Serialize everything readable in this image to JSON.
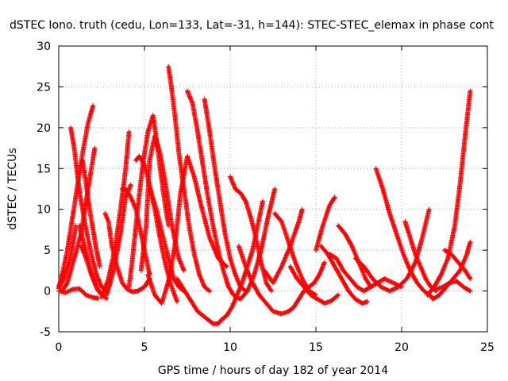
{
  "chart_data": {
    "type": "scatter",
    "title": "dSTEC Iono. truth (cedu, Lon=133, Lat=-31, h=144): STEC-STEC_elemax in phase cont",
    "xlabel": "GPS time / hours of day 182 of year 2014",
    "ylabel": "dSTEC  / TECUs",
    "xlim": [
      0,
      25
    ],
    "ylim": [
      -5,
      30
    ],
    "xticks": [
      "0",
      "5",
      "10",
      "15",
      "20",
      "25"
    ],
    "yticks": [
      "-5",
      "0",
      "5",
      "10",
      "15",
      "20",
      "25",
      "30"
    ],
    "grid": true,
    "legend": false,
    "marker": "+",
    "color": "#ff0000",
    "series": [
      {
        "x": [
          0.0,
          0.2,
          0.5,
          0.8,
          1.1,
          1.4,
          1.7,
          2.0
        ],
        "y": [
          0.5,
          2.0,
          5.0,
          9.0,
          13.0,
          17.0,
          20.5,
          22.7
        ]
      },
      {
        "x": [
          0.0,
          0.3,
          0.6,
          0.8,
          1.0
        ],
        "y": [
          0.3,
          1.5,
          3.5,
          5.5,
          8.0
        ]
      },
      {
        "x": [
          0.0,
          0.4,
          0.8,
          1.2,
          1.6,
          2.0,
          2.3
        ],
        "y": [
          0.0,
          -0.2,
          0.2,
          0.3,
          -0.5,
          -0.8,
          -0.9
        ]
      },
      {
        "x": [
          0.7,
          0.9,
          1.1,
          1.3,
          1.6,
          1.9,
          2.2,
          2.5,
          2.8
        ],
        "y": [
          20.0,
          17.5,
          14.0,
          11.0,
          7.5,
          4.5,
          2.0,
          0.5,
          0.0
        ]
      },
      {
        "x": [
          0.2,
          0.5,
          0.9,
          1.3,
          1.6,
          1.9,
          2.1
        ],
        "y": [
          0.0,
          1.0,
          4.0,
          7.0,
          11.0,
          15.0,
          17.5
        ]
      },
      {
        "x": [
          1.2,
          1.5,
          1.8,
          2.1,
          2.3,
          2.5
        ],
        "y": [
          8.0,
          5.5,
          3.0,
          1.0,
          0.0,
          -0.3
        ]
      },
      {
        "x": [
          1.4,
          1.6,
          1.8,
          2.0,
          2.2,
          2.4
        ],
        "y": [
          16.0,
          13.0,
          10.0,
          7.5,
          5.0,
          3.0
        ]
      },
      {
        "x": [
          1.3,
          1.6,
          1.9,
          2.2,
          2.5,
          2.8
        ],
        "y": [
          5.5,
          4.0,
          2.0,
          0.5,
          -0.5,
          -0.9
        ]
      },
      {
        "x": [
          2.5,
          2.9,
          3.3,
          3.6,
          3.9,
          4.1
        ],
        "y": [
          -0.8,
          1.5,
          5.5,
          10.0,
          15.0,
          19.5
        ]
      },
      {
        "x": [
          2.7,
          2.9,
          3.1,
          3.4,
          3.7,
          4.0,
          4.3,
          4.6,
          5.0,
          5.3
        ],
        "y": [
          9.5,
          8.5,
          5.5,
          3.0,
          1.0,
          0.2,
          -0.1,
          0.0,
          0.5,
          1.5
        ]
      },
      {
        "x": [
          2.8,
          3.2,
          3.6,
          3.9,
          4.2
        ],
        "y": [
          -0.5,
          2.5,
          7.0,
          11.5,
          13.0
        ]
      },
      {
        "x": [
          3.7,
          3.9,
          4.2,
          4.5,
          4.8,
          5.1,
          5.3
        ],
        "y": [
          12.5,
          12.5,
          11.5,
          10.0,
          7.0,
          4.0,
          2.0
        ]
      },
      {
        "x": [
          4.1,
          4.3,
          4.6,
          4.9,
          5.2,
          5.5,
          5.8,
          6.1,
          6.4
        ],
        "y": [
          0.5,
          4.0,
          10.0,
          15.5,
          19.5,
          21.5,
          17.0,
          12.0,
          8.0
        ]
      },
      {
        "x": [
          4.5,
          4.7,
          5.0,
          5.3,
          5.6,
          5.9,
          6.2,
          6.5,
          6.9
        ],
        "y": [
          16.0,
          16.5,
          15.5,
          13.0,
          10.0,
          6.5,
          3.5,
          1.0,
          -1.3
        ]
      },
      {
        "x": [
          4.8,
          5.1,
          5.3,
          5.6,
          5.9,
          6.2,
          6.6,
          7.0,
          7.3
        ],
        "y": [
          2.5,
          8.0,
          16.0,
          19.0,
          17.0,
          13.5,
          8.0,
          4.0,
          2.5
        ]
      },
      {
        "x": [
          5.3,
          5.7,
          6.1,
          6.4,
          6.7,
          7.0,
          7.3
        ],
        "y": [
          12.5,
          10.0,
          6.5,
          4.0,
          1.5,
          0.5,
          0.0
        ]
      },
      {
        "x": [
          5.2,
          5.6,
          6.0,
          6.3,
          6.5,
          6.8,
          7.1,
          7.5,
          7.9,
          8.3,
          8.8,
          9.3,
          9.8
        ],
        "y": [
          2.0,
          -0.5,
          -1.5,
          0.5,
          2.0,
          6.0,
          12.0,
          16.5,
          14.0,
          10.5,
          6.5,
          4.0,
          3.0
        ]
      },
      {
        "x": [
          6.4,
          6.6,
          6.8,
          7.0,
          7.3,
          7.6,
          7.9,
          8.2,
          8.5,
          8.8
        ],
        "y": [
          27.5,
          24.5,
          21.0,
          17.0,
          12.5,
          8.0,
          4.5,
          2.0,
          0.5,
          0.0
        ]
      },
      {
        "x": [
          6.9,
          7.2,
          7.5,
          7.8,
          8.1,
          8.4,
          8.7,
          9.0,
          9.3,
          9.5
        ],
        "y": [
          1.5,
          0.5,
          -0.5,
          -1.5,
          -2.5,
          -3.0,
          -3.5,
          -4.0,
          -4.0,
          -3.5
        ]
      },
      {
        "x": [
          7.5,
          7.8,
          8.1,
          8.4,
          8.7,
          9.0,
          9.3,
          9.6,
          9.9,
          10.2
        ],
        "y": [
          24.5,
          23.0,
          19.5,
          15.5,
          11.5,
          8.0,
          5.0,
          2.5,
          0.5,
          -0.5
        ]
      },
      {
        "x": [
          8.5,
          8.8,
          9.1,
          9.4,
          9.7,
          10.0,
          10.3,
          10.6,
          10.9
        ],
        "y": [
          23.5,
          19.5,
          15.0,
          11.0,
          7.0,
          4.0,
          2.0,
          0.5,
          0.0
        ]
      },
      {
        "x": [
          9.5,
          9.8,
          10.1,
          10.4,
          10.7,
          11.0,
          11.3,
          11.6,
          11.9
        ],
        "y": [
          -3.5,
          -3.0,
          -2.0,
          -0.5,
          1.0,
          3.0,
          5.0,
          8.0,
          11.0
        ]
      },
      {
        "x": [
          10.0,
          10.3,
          10.6,
          10.9,
          11.2,
          11.5,
          11.8,
          12.1,
          12.4
        ],
        "y": [
          14.0,
          12.5,
          12.0,
          11.0,
          9.0,
          6.5,
          3.5,
          1.0,
          0.0
        ]
      },
      {
        "x": [
          10.2,
          10.6,
          11.0,
          11.4,
          11.8,
          12.2,
          12.6
        ],
        "y": [
          -0.5,
          -1.0,
          0.0,
          2.0,
          5.0,
          9.0,
          12.5
        ]
      },
      {
        "x": [
          10.5,
          10.9,
          11.3,
          11.7,
          12.1,
          12.5,
          13.0,
          13.4
        ],
        "y": [
          5.5,
          3.0,
          1.0,
          -0.5,
          -1.5,
          -2.5,
          -2.8,
          -2.5
        ]
      },
      {
        "x": [
          12.0,
          12.5,
          13.0,
          13.5,
          14.0,
          14.2
        ],
        "y": [
          2.5,
          1.0,
          3.0,
          5.5,
          8.5,
          10.0
        ]
      },
      {
        "x": [
          12.6,
          13.0,
          13.4,
          13.8,
          14.2,
          14.6,
          15.0
        ],
        "y": [
          9.5,
          8.5,
          6.0,
          3.5,
          1.5,
          0.0,
          -0.5
        ]
      },
      {
        "x": [
          13.4,
          13.7,
          14.0,
          14.3,
          14.6,
          14.9,
          15.2,
          15.5
        ],
        "y": [
          -2.5,
          -2.0,
          -1.0,
          0.0,
          0.5,
          1.0,
          2.0,
          3.5
        ]
      },
      {
        "x": [
          13.5,
          13.9,
          14.3,
          14.7,
          15.1,
          15.5,
          15.9,
          16.3
        ],
        "y": [
          3.0,
          1.5,
          0.5,
          -0.5,
          -1.0,
          -1.5,
          -1.2,
          -0.5
        ]
      },
      {
        "x": [
          15.0,
          15.4,
          15.8,
          16.1
        ],
        "y": [
          5.0,
          8.0,
          10.5,
          11.5
        ]
      },
      {
        "x": [
          15.3,
          15.7,
          16.1,
          16.5,
          16.9,
          17.3,
          17.7,
          18.0
        ],
        "y": [
          5.5,
          4.5,
          3.0,
          1.5,
          0.0,
          -1.0,
          -1.5,
          -1.3
        ]
      },
      {
        "x": [
          15.8,
          16.2,
          16.6,
          17.0,
          17.4,
          17.8,
          18.2,
          18.6,
          19.0,
          19.5,
          20.0
        ],
        "y": [
          4.5,
          4.0,
          2.5,
          1.5,
          0.5,
          0.0,
          0.5,
          1.0,
          1.5,
          1.0,
          0.5
        ]
      },
      {
        "x": [
          16.3,
          16.7,
          17.1,
          17.5,
          17.9,
          18.2
        ],
        "y": [
          8.0,
          7.0,
          5.5,
          3.5,
          1.5,
          0.5
        ]
      },
      {
        "x": [
          18.5,
          18.9,
          19.3,
          19.7,
          20.1,
          20.5,
          20.9,
          21.3,
          21.8
        ],
        "y": [
          15.0,
          12.5,
          9.5,
          7.0,
          4.5,
          2.5,
          1.0,
          0.0,
          -0.8
        ]
      },
      {
        "x": [
          17.3,
          17.8,
          18.3,
          18.8,
          19.3,
          19.8,
          20.3,
          20.8,
          21.2,
          21.6
        ],
        "y": [
          4.0,
          3.0,
          1.5,
          0.5,
          0.0,
          0.5,
          1.5,
          3.5,
          6.5,
          10.0
        ]
      },
      {
        "x": [
          20.2,
          20.5,
          20.8,
          21.1,
          21.4,
          21.7,
          22.0
        ],
        "y": [
          8.5,
          6.5,
          4.5,
          3.0,
          1.5,
          0.5,
          0.0
        ]
      },
      {
        "x": [
          21.5,
          21.9,
          22.3,
          22.7,
          23.1,
          23.4,
          23.7,
          24.0
        ],
        "y": [
          -0.5,
          0.5,
          2.0,
          4.0,
          8.0,
          13.0,
          19.0,
          24.5
        ]
      },
      {
        "x": [
          21.8,
          22.2,
          22.6,
          23.0,
          23.4,
          23.8,
          24.0
        ],
        "y": [
          -1.0,
          -0.5,
          0.5,
          1.5,
          2.5,
          4.5,
          6.0
        ]
      },
      {
        "x": [
          22.5,
          22.9,
          23.3,
          23.7,
          24.0
        ],
        "y": [
          5.0,
          4.5,
          3.5,
          2.5,
          1.5
        ]
      },
      {
        "x": [
          22.0,
          22.4,
          22.8,
          23.2,
          23.6,
          24.0
        ],
        "y": [
          0.2,
          0.5,
          1.0,
          1.2,
          0.5,
          0.0
        ]
      }
    ]
  }
}
